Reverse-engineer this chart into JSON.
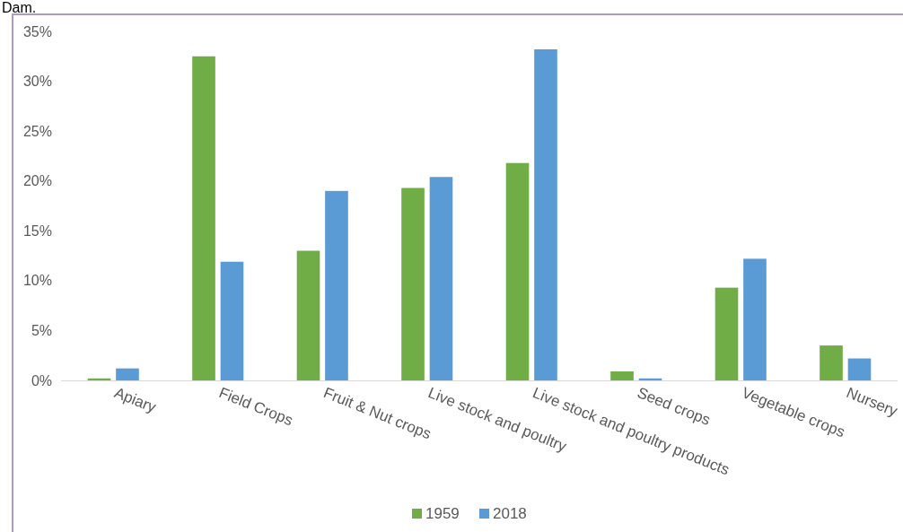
{
  "chart_data": {
    "type": "bar",
    "annotations": [
      "Dam."
    ],
    "categories": [
      "Apiary",
      "Field Crops",
      "Fruit & Nut crops",
      "Live stock and poultry",
      "Live stock and poultry products",
      "Seed crops",
      "Vegetable crops",
      "Nursery"
    ],
    "series": [
      {
        "name": "1959",
        "color": "#70ad47",
        "values": [
          0.2,
          32.5,
          13.0,
          19.3,
          21.8,
          0.9,
          9.3,
          3.5
        ]
      },
      {
        "name": "2018",
        "color": "#5b9bd5",
        "values": [
          1.2,
          11.9,
          19.0,
          20.4,
          33.2,
          0.2,
          12.2,
          2.2
        ]
      }
    ],
    "ylim": [
      0,
      35
    ],
    "yticks": [
      {
        "value": 0,
        "label": "0%"
      },
      {
        "value": 5,
        "label": "5%"
      },
      {
        "value": 10,
        "label": "10%"
      },
      {
        "value": 15,
        "label": "15%"
      },
      {
        "value": 20,
        "label": "20%"
      },
      {
        "value": 25,
        "label": "25%"
      },
      {
        "value": 30,
        "label": "30%"
      },
      {
        "value": 35,
        "label": "35%"
      }
    ],
    "grid": false,
    "legend": "bottom"
  }
}
